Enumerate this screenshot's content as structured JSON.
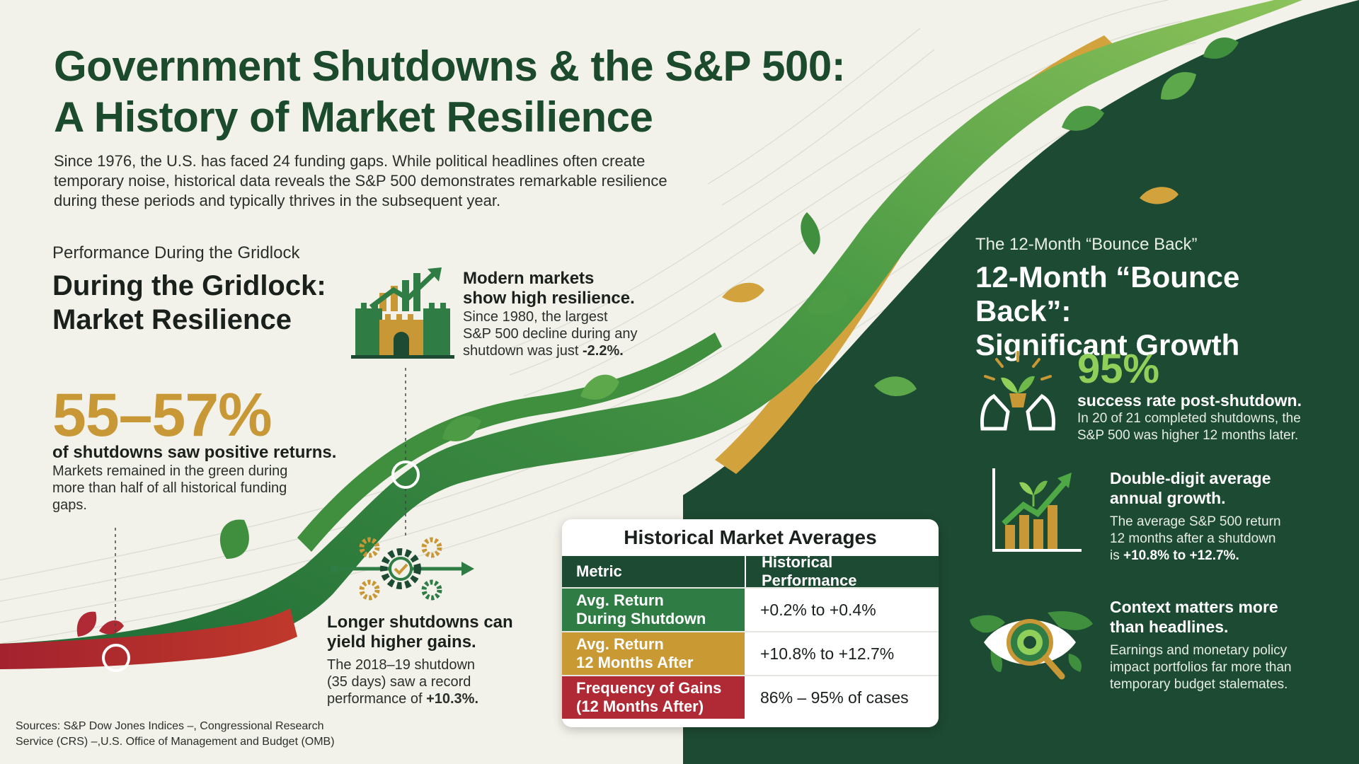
{
  "title": {
    "line1": "Government Shutdowns & the S&P 500:",
    "line2": "A History of Market Resilience"
  },
  "intro": "Since 1976, the U.S. has faced 24 funding gaps. While political headlines often create temporary noise, historical data reveals the S&P 500 demonstrates remarkable resilience during these periods and typically thrives in the subsequent year.",
  "left_section": {
    "kicker": "Performance During the Gridlock",
    "heading_line1": "During the Gridlock:",
    "heading_line2": "Market Resilience",
    "big_stat": "55–57%",
    "big_stat_bold": "of shutdowns saw positive returns.",
    "big_stat_text": "Markets remained in the green during more than half of all historical funding gaps.",
    "modern_bold_1": "Modern markets",
    "modern_bold_2": "show high resilience.",
    "modern_text_1": "Since 1980, the largest",
    "modern_text_2": "S&P 500 decline during any",
    "modern_text_3": "shutdown was just",
    "modern_value": "-2.2%.",
    "longer_bold_1": "Longer shutdowns can",
    "longer_bold_2": "yield higher gains.",
    "longer_text_1": "The 2018–19 shutdown",
    "longer_text_2": "(35 days) saw a record",
    "longer_text_3": "performance of",
    "longer_value": "+10.3%."
  },
  "right_section": {
    "kicker": "The 12-Month “Bounce Back”",
    "heading_line1": "12-Month “Bounce Back”:",
    "heading_line2": "Significant Growth",
    "pct": "95%",
    "pct_bold": "success rate post-shutdown.",
    "pct_text_1": "In 20 of 21 completed shutdowns, the",
    "pct_text_2": "S&P 500 was higher 12 months later.",
    "growth_bold_1": "Double-digit average",
    "growth_bold_2": "annual growth.",
    "growth_text_1": "The average S&P 500 return",
    "growth_text_2": "12 months after a shutdown",
    "growth_text_3": "is",
    "growth_value": "+10.8% to +12.7%.",
    "context_bold_1": "Context matters more",
    "context_bold_2": "than headlines.",
    "context_text_1": "Earnings and monetary policy",
    "context_text_2": "impact portfolios far more than",
    "context_text_3": "temporary budget stalemates."
  },
  "table": {
    "title": "Historical Market Averages",
    "col1": "Metric",
    "col2": "Historical Performance",
    "rows": [
      {
        "metric_1": "Avg. Return",
        "metric_2": "During Shutdown",
        "value": "+0.2% to +0.4%",
        "color": "#2f7d45"
      },
      {
        "metric_1": "Avg. Return",
        "metric_2": "12 Months After",
        "value": "+10.8% to +12.7%",
        "color": "#c99a34"
      },
      {
        "metric_1": "Frequency of Gains",
        "metric_2": "(12 Months After)",
        "value": "86% – 95% of cases",
        "color": "#b02a36"
      }
    ]
  },
  "sources": {
    "line1": "Sources: S&P Dow Jones Indices –, Congressional Research",
    "line2": "Service (CRS) –,U.S. Office of Management and Budget (OMB)"
  },
  "colors": {
    "dark_green": "#1d4a32",
    "gold": "#c99836",
    "bright_green": "#8fcf5a",
    "red": "#b02a36"
  },
  "icons": [
    "castle-growth-icon",
    "gears-process-icon",
    "sprout-hands-icon",
    "growth-chart-icon",
    "world-eye-magnifier-icon"
  ]
}
